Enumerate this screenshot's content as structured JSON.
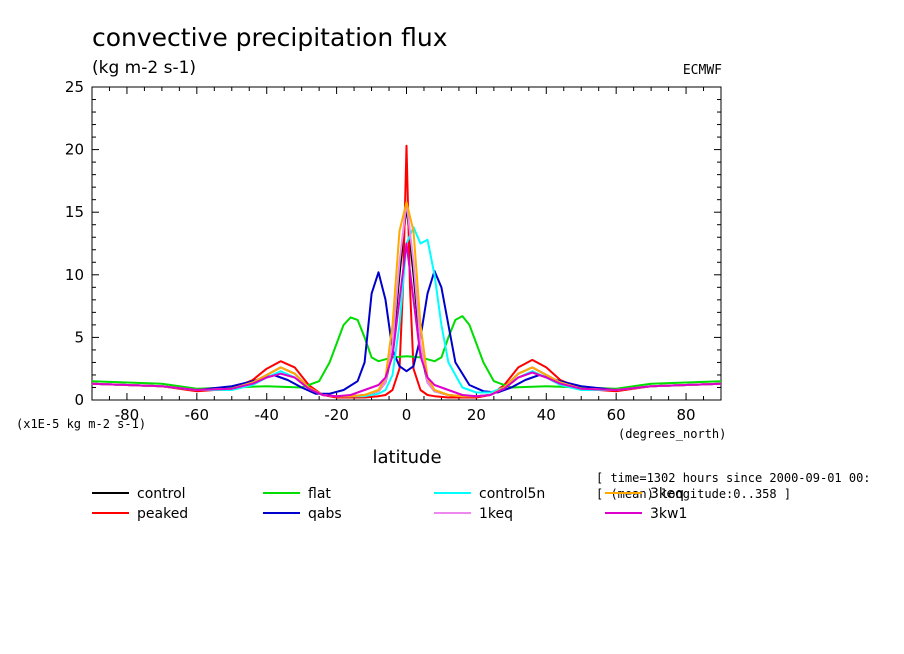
{
  "chart_data": {
    "type": "line",
    "title": "convective precipitation flux",
    "subtitle": "(kg m-2 s-1)",
    "source": "ECMWF",
    "xlabel": "latitude",
    "x_units": "(degrees_north)",
    "y_scale_note": "(x1E-5 kg m-2 s-1)",
    "xlim": [
      -90,
      90
    ],
    "ylim": [
      0,
      25
    ],
    "x_ticks": [
      -80,
      -60,
      -40,
      -20,
      0,
      20,
      40,
      60,
      80
    ],
    "x_tick_labels": [
      "-80",
      "-60",
      "-40",
      "-20",
      "0",
      "20",
      "40",
      "60",
      "80"
    ],
    "y_ticks": [
      0,
      5,
      10,
      15,
      20,
      25
    ],
    "y_tick_labels": [
      "0",
      "5",
      "10",
      "15",
      "20",
      "25"
    ],
    "info_lines": [
      "[ time=1302 hours since 2000-09-01 00:",
      "[ (mean) longitude:0..358 ]"
    ],
    "series": [
      {
        "name": "control",
        "color": "#000000",
        "x": [
          -90,
          -80,
          -70,
          -60,
          -50,
          -44,
          -40,
          -36,
          -32,
          -28,
          -24,
          -20,
          -16,
          -12,
          -8,
          -6,
          -4,
          -2,
          0,
          2,
          4,
          6,
          8,
          12,
          16,
          20,
          24,
          28,
          32,
          36,
          40,
          44,
          50,
          60,
          70,
          80,
          90
        ],
        "y": [
          1.3,
          1.2,
          1.1,
          0.8,
          0.9,
          1.4,
          2.0,
          2.6,
          2.1,
          1.0,
          0.4,
          0.3,
          0.3,
          0.4,
          0.7,
          1.4,
          4.0,
          10.0,
          15.5,
          10.0,
          4.0,
          1.4,
          0.7,
          0.4,
          0.3,
          0.3,
          0.4,
          1.0,
          2.1,
          2.6,
          2.0,
          1.4,
          0.9,
          0.8,
          1.1,
          1.2,
          1.3
        ]
      },
      {
        "name": "peaked",
        "color": "#ff0000",
        "x": [
          -90,
          -80,
          -70,
          -60,
          -50,
          -44,
          -40,
          -36,
          -32,
          -28,
          -24,
          -20,
          -16,
          -12,
          -8,
          -6,
          -4,
          -2,
          -1,
          0,
          1,
          2,
          4,
          6,
          8,
          12,
          16,
          20,
          24,
          28,
          32,
          36,
          40,
          44,
          50,
          60,
          70,
          80,
          90
        ],
        "y": [
          1.3,
          1.2,
          1.1,
          0.7,
          0.9,
          1.6,
          2.5,
          3.1,
          2.6,
          1.2,
          0.4,
          0.2,
          0.2,
          0.2,
          0.3,
          0.4,
          0.8,
          2.5,
          9.0,
          20.3,
          9.0,
          2.5,
          0.8,
          0.4,
          0.3,
          0.2,
          0.2,
          0.2,
          0.4,
          1.2,
          2.6,
          3.2,
          2.6,
          1.6,
          0.9,
          0.7,
          1.1,
          1.2,
          1.3
        ]
      },
      {
        "name": "flat",
        "color": "#00dd00",
        "x": [
          -90,
          -80,
          -70,
          -60,
          -50,
          -40,
          -30,
          -25,
          -22,
          -18,
          -16,
          -14,
          -12,
          -10,
          -8,
          -4,
          0,
          4,
          8,
          10,
          12,
          14,
          16,
          18,
          22,
          25,
          30,
          40,
          50,
          60,
          70,
          80,
          90
        ],
        "y": [
          1.5,
          1.4,
          1.3,
          0.9,
          1.0,
          1.1,
          1.0,
          1.5,
          3.0,
          6.0,
          6.6,
          6.4,
          5.0,
          3.4,
          3.1,
          3.4,
          3.5,
          3.4,
          3.1,
          3.4,
          5.0,
          6.4,
          6.7,
          6.0,
          3.0,
          1.5,
          1.0,
          1.1,
          1.0,
          0.9,
          1.3,
          1.4,
          1.5
        ]
      },
      {
        "name": "qabs",
        "color": "#0000cc",
        "x": [
          -90,
          -80,
          -70,
          -60,
          -50,
          -44,
          -38,
          -34,
          -30,
          -26,
          -22,
          -18,
          -14,
          -12,
          -10,
          -8,
          -6,
          -4,
          -2,
          0,
          2,
          4,
          6,
          8,
          10,
          12,
          14,
          18,
          22,
          26,
          30,
          34,
          38,
          44,
          50,
          60,
          70,
          80,
          90
        ],
        "y": [
          1.3,
          1.2,
          1.1,
          0.8,
          1.1,
          1.5,
          2.0,
          1.6,
          1.0,
          0.5,
          0.5,
          0.8,
          1.5,
          3.0,
          8.5,
          10.2,
          8.0,
          4.0,
          2.7,
          2.3,
          2.7,
          5.0,
          8.5,
          10.3,
          9.0,
          6.0,
          3.0,
          1.2,
          0.7,
          0.6,
          1.0,
          1.6,
          2.0,
          1.5,
          1.1,
          0.8,
          1.1,
          1.2,
          1.3
        ]
      },
      {
        "name": "control5n",
        "color": "#00ffff",
        "x": [
          -90,
          -80,
          -70,
          -60,
          -50,
          -44,
          -40,
          -36,
          -32,
          -28,
          -24,
          -20,
          -16,
          -12,
          -8,
          -6,
          -4,
          -2,
          0,
          2,
          4,
          6,
          8,
          10,
          12,
          16,
          20,
          24,
          28,
          32,
          36,
          40,
          44,
          50,
          60,
          70,
          80,
          90
        ],
        "y": [
          1.3,
          1.2,
          1.1,
          0.8,
          0.8,
          1.2,
          1.8,
          2.3,
          1.8,
          0.9,
          0.4,
          0.3,
          0.3,
          0.3,
          0.5,
          0.8,
          2.0,
          6.0,
          12.5,
          13.8,
          12.5,
          12.8,
          10.0,
          6.0,
          3.0,
          1.0,
          0.6,
          0.6,
          1.0,
          1.8,
          2.3,
          1.8,
          1.2,
          0.8,
          0.8,
          1.1,
          1.2,
          1.3
        ]
      },
      {
        "name": "1keq",
        "color": "#ee88ee",
        "x": [
          -90,
          -80,
          -70,
          -60,
          -50,
          -44,
          -40,
          -36,
          -32,
          -28,
          -24,
          -20,
          -16,
          -12,
          -8,
          -6,
          -4,
          -2,
          0,
          2,
          4,
          6,
          8,
          12,
          16,
          20,
          24,
          28,
          32,
          36,
          40,
          44,
          50,
          60,
          70,
          80,
          90
        ],
        "y": [
          1.3,
          1.2,
          1.1,
          0.8,
          0.9,
          1.4,
          2.0,
          2.6,
          2.1,
          1.0,
          0.4,
          0.3,
          0.3,
          0.4,
          0.7,
          1.4,
          4.5,
          11.0,
          15.8,
          11.0,
          4.5,
          1.4,
          0.7,
          0.4,
          0.3,
          0.3,
          0.4,
          1.0,
          2.1,
          2.6,
          2.0,
          1.4,
          0.9,
          0.8,
          1.1,
          1.2,
          1.3
        ]
      },
      {
        "name": "3keq",
        "color": "#ffaa00",
        "x": [
          -90,
          -80,
          -70,
          -60,
          -50,
          -44,
          -40,
          -36,
          -32,
          -28,
          -24,
          -20,
          -16,
          -12,
          -8,
          -6,
          -4,
          -2,
          0,
          2,
          4,
          6,
          8,
          12,
          16,
          20,
          24,
          28,
          32,
          36,
          40,
          44,
          50,
          60,
          70,
          80,
          90
        ],
        "y": [
          1.3,
          1.2,
          1.1,
          0.8,
          0.9,
          1.4,
          2.0,
          2.6,
          2.1,
          1.0,
          0.4,
          0.3,
          0.3,
          0.4,
          0.8,
          1.8,
          6.0,
          13.5,
          15.8,
          13.5,
          6.0,
          1.8,
          0.8,
          0.4,
          0.3,
          0.3,
          0.4,
          1.0,
          2.1,
          2.6,
          2.0,
          1.4,
          0.9,
          0.8,
          1.1,
          1.2,
          1.3
        ]
      },
      {
        "name": "3kw1",
        "color": "#dd00cc",
        "x": [
          -90,
          -80,
          -70,
          -60,
          -50,
          -44,
          -40,
          -36,
          -32,
          -28,
          -24,
          -20,
          -16,
          -12,
          -8,
          -6,
          -4,
          -2,
          0,
          2,
          4,
          6,
          8,
          12,
          16,
          20,
          24,
          28,
          32,
          36,
          40,
          44,
          50,
          60,
          70,
          80,
          90
        ],
        "y": [
          1.3,
          1.2,
          1.1,
          0.8,
          0.9,
          1.3,
          1.8,
          2.1,
          1.8,
          0.9,
          0.4,
          0.3,
          0.4,
          0.8,
          1.2,
          1.8,
          3.5,
          8.0,
          12.5,
          8.0,
          3.5,
          1.8,
          1.2,
          0.8,
          0.4,
          0.3,
          0.4,
          0.9,
          1.8,
          2.2,
          1.8,
          1.3,
          0.9,
          0.8,
          1.1,
          1.2,
          1.3
        ]
      }
    ]
  }
}
